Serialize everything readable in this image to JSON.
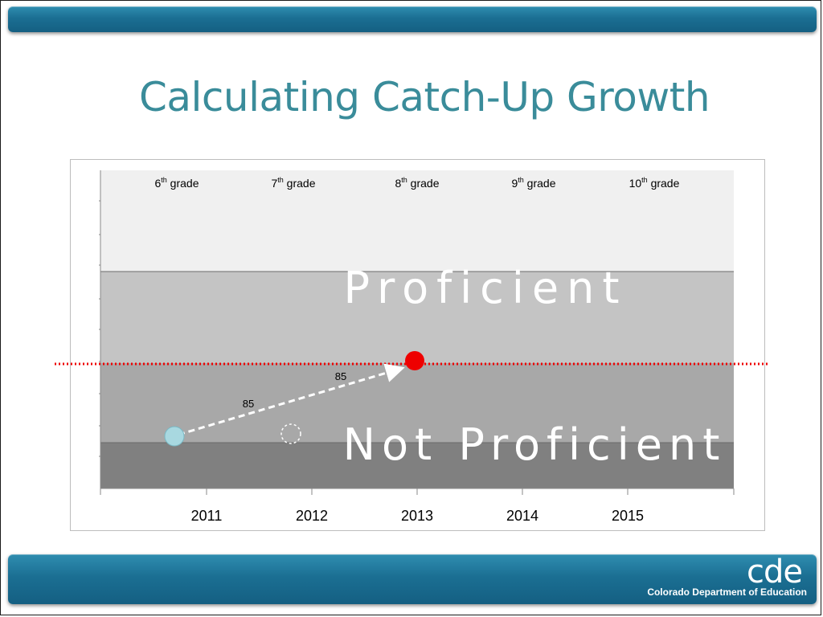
{
  "slide": {
    "title": "Calculating Catch-Up Growth"
  },
  "branding": {
    "logo": "cde",
    "organization": "Colorado Department of Education",
    "accent_color": "#1b6f93",
    "title_color": "#3a8c9a"
  },
  "chart_data": {
    "type": "scatter",
    "x_categories": [
      "2011",
      "2012",
      "2013",
      "2014",
      "2015"
    ],
    "grade_labels": [
      {
        "base": "6",
        "sup": "th",
        "text": " grade"
      },
      {
        "base": "7",
        "sup": "th",
        "text": " grade"
      },
      {
        "base": "8",
        "sup": "th",
        "text": " grade"
      },
      {
        "base": "9",
        "sup": "th",
        "text": " grade"
      },
      {
        "base": "10",
        "sup": "th",
        "text": " grade"
      }
    ],
    "bands": [
      {
        "label": "",
        "color": "#f0f0f0"
      },
      {
        "label": "Proficient",
        "color": "#c4c4c4"
      },
      {
        "label": "Not Proficient",
        "color": "#a8a8a8"
      },
      {
        "label": "",
        "color": "#808080"
      }
    ],
    "points": [
      {
        "year": "2011",
        "kind": "actual",
        "color": "#a8d8e0"
      },
      {
        "year": "2012",
        "kind": "projected-empty",
        "color": "#ffffff"
      },
      {
        "year": "2013",
        "kind": "target",
        "color": "#ee0000"
      }
    ],
    "growth_labels": [
      "85",
      "85"
    ],
    "target_line_color": "#ee0000",
    "grid": false
  }
}
